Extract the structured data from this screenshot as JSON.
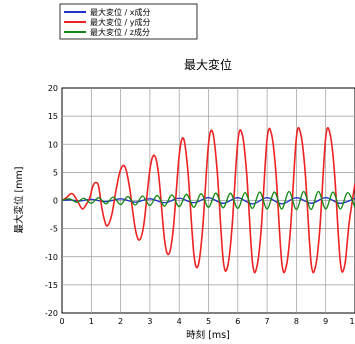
{
  "chart_data": {
    "type": "line",
    "title": "最大変位",
    "xlabel": "時刻 [ms]",
    "ylabel": "最大変位 [mm]",
    "xlim": [
      0,
      10
    ],
    "ylim": [
      -20,
      20
    ],
    "x_ticks": [
      "0",
      "1",
      "2",
      "3",
      "4",
      "5",
      "6",
      "7",
      "8",
      "9",
      "1"
    ],
    "y_ticks": [
      "20",
      "15",
      "10",
      "5",
      "0",
      "-5",
      "-10",
      "-15",
      "-20"
    ],
    "grid": true,
    "legend_position": "top-left, outside plot",
    "series": [
      {
        "name": "最大変位 / x成分",
        "color": "#2233cc",
        "x": [
          0,
          0.3,
          0.6,
          1.0,
          1.5,
          2.0,
          2.5,
          3.0,
          3.5,
          4.0,
          4.5,
          5.0,
          5.5,
          6.0,
          6.5,
          7.0,
          7.5,
          8.0,
          8.5,
          9.0,
          9.5,
          10.0
        ],
        "y": [
          0,
          0.1,
          -0.1,
          0.2,
          -0.2,
          0.3,
          -0.3,
          0.3,
          -0.4,
          0.4,
          -0.4,
          0.5,
          -0.5,
          0.5,
          -0.6,
          0.5,
          -0.6,
          0.5,
          -0.5,
          0.5,
          -0.5,
          0.4
        ]
      },
      {
        "name": "最大変位 / y成分",
        "color": "#ee2222",
        "x": [
          0,
          0.15,
          0.3,
          0.4,
          0.55,
          0.7,
          0.85,
          0.95,
          1.05,
          1.15,
          1.25,
          1.35,
          1.45,
          1.55,
          1.7,
          1.85,
          2.0,
          2.15,
          2.3,
          2.5,
          2.65,
          2.8,
          3.0,
          3.15,
          3.3,
          3.5,
          3.65,
          3.8,
          4.0,
          4.15,
          4.3,
          4.5,
          4.65,
          4.8,
          5.0,
          5.15,
          5.3,
          5.5,
          5.65,
          5.8,
          6.0,
          6.15,
          6.3,
          6.5,
          6.65,
          6.8,
          7.0,
          7.15,
          7.3,
          7.5,
          7.65,
          7.8,
          8.0,
          8.15,
          8.3,
          8.5,
          8.65,
          8.8,
          9.0,
          9.15,
          9.3,
          9.5,
          9.65,
          9.8,
          10.0
        ],
        "y": [
          0,
          0.5,
          1.2,
          1.0,
          -0.3,
          -1.5,
          -0.5,
          0.5,
          2.5,
          3.2,
          2.5,
          -1.0,
          -3.5,
          -4.5,
          -2.5,
          2.0,
          5.5,
          6.0,
          2.5,
          -5.0,
          -7.0,
          -4.0,
          5.5,
          8.0,
          4.5,
          -7.0,
          -9.5,
          -5.0,
          8.0,
          11.0,
          5.0,
          -9.5,
          -11.5,
          -5.0,
          10.0,
          12.0,
          5.0,
          -10.5,
          -11.8,
          -5.0,
          10.5,
          11.8,
          5.0,
          -11.0,
          -11.8,
          -5.0,
          11.0,
          11.8,
          5.0,
          -11.0,
          -11.8,
          -5.0,
          11.2,
          11.8,
          5.0,
          -11.0,
          -11.8,
          -5.0,
          11.2,
          11.8,
          5.0,
          -11.0,
          -11.5,
          -4.0,
          3.0
        ]
      },
      {
        "name": "最大変位 / z成分",
        "color": "#118811",
        "x": [
          0,
          0.25,
          0.5,
          0.75,
          1.0,
          1.25,
          1.5,
          1.75,
          2.0,
          2.25,
          2.5,
          2.75,
          3.0,
          3.25,
          3.5,
          3.75,
          4.0,
          4.25,
          4.5,
          4.75,
          5.0,
          5.25,
          5.5,
          5.75,
          6.0,
          6.25,
          6.5,
          6.75,
          7.0,
          7.25,
          7.5,
          7.75,
          8.0,
          8.25,
          8.5,
          8.75,
          9.0,
          9.25,
          9.5,
          9.75,
          10.0
        ],
        "y": [
          0,
          0.3,
          -0.3,
          0.4,
          -0.5,
          0.5,
          -0.6,
          0.6,
          -0.7,
          0.7,
          -0.8,
          0.8,
          -0.9,
          0.9,
          -1.0,
          1.0,
          -1.1,
          1.1,
          -1.2,
          1.2,
          -1.2,
          1.3,
          -1.3,
          1.3,
          -1.4,
          1.4,
          -1.4,
          1.5,
          -1.5,
          1.5,
          -1.5,
          1.6,
          -1.6,
          1.6,
          -1.6,
          1.6,
          -1.5,
          1.5,
          -1.5,
          1.4,
          -1.2
        ]
      }
    ]
  }
}
